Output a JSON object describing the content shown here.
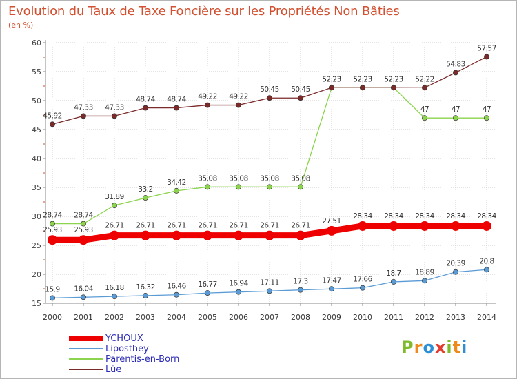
{
  "title": "Evolution du Taux de Taxe Foncière sur les Propriétés Non Bâties",
  "unit_label": "(en %)",
  "logo": {
    "text": "Proxiti",
    "letters": [
      {
        "char": "P",
        "color": "#7fba2a"
      },
      {
        "char": "r",
        "color": "#ef8a1a"
      },
      {
        "char": "o",
        "color": "#2c8fd6"
      },
      {
        "char": "x",
        "color": "#e33b2d"
      },
      {
        "char": "i",
        "color": "#7fba2a"
      },
      {
        "char": "t",
        "color": "#ef8a1a"
      },
      {
        "char": "i",
        "color": "#2c8fd6"
      }
    ]
  },
  "chart_data": {
    "type": "line",
    "title": "Evolution du Taux de Taxe Foncière sur les Propriétés Non Bâties",
    "ylabel": "(en %)",
    "xlabel": "",
    "x": [
      "2000",
      "2001",
      "2002",
      "2003",
      "2004",
      "2005",
      "2006",
      "2007",
      "2008",
      "2009",
      "2010",
      "2011",
      "2012",
      "2013",
      "2014"
    ],
    "ylim": [
      15,
      60
    ],
    "yticks": [
      "15",
      "20",
      "25",
      "30",
      "35",
      "40",
      "45",
      "50",
      "55",
      "60"
    ],
    "grid": true,
    "legend_position": "bottom-left",
    "series": [
      {
        "name": "YCHOUX",
        "color": "#ee0000",
        "values": [
          25.93,
          25.93,
          26.71,
          26.71,
          26.71,
          26.71,
          26.71,
          26.71,
          26.71,
          27.51,
          28.34,
          28.34,
          28.34,
          28.34,
          28.34
        ],
        "labels": [
          "25.93",
          "25.93",
          "26.71",
          "26.71",
          "26.71",
          "26.71",
          "26.71",
          "26.71",
          "26.71",
          "27.51",
          "28.34",
          "28.34",
          "28.34",
          "28.34",
          "28.34"
        ]
      },
      {
        "name": "Liposthey",
        "color": "#5b9bd5",
        "values": [
          15.9,
          16.04,
          16.18,
          16.32,
          16.46,
          16.77,
          16.94,
          17.11,
          17.3,
          17.47,
          17.66,
          18.7,
          18.89,
          20.39,
          20.8
        ],
        "labels": [
          "15.9",
          "16.04",
          "16.18",
          "16.32",
          "16.46",
          "16.77",
          "16.94",
          "17.11",
          "17.3",
          "17.47",
          "17.66",
          "18.7",
          "18.89",
          "20.39",
          "20.8"
        ]
      },
      {
        "name": "Parentis-en-Born",
        "color": "#8cd34e",
        "values": [
          28.74,
          28.74,
          31.89,
          33.2,
          34.42,
          35.08,
          35.08,
          35.08,
          35.08,
          52.23,
          52.23,
          52.23,
          47,
          47,
          47
        ],
        "labels": [
          "28.74",
          "28.74",
          "31.89",
          "33.2",
          "34.42",
          "35.08",
          "35.08",
          "35.08",
          "35.08",
          "52.23",
          "52.23",
          "52.23",
          "47",
          "47",
          "47"
        ]
      },
      {
        "name": "Lüe",
        "color": "#7b2a2a",
        "values": [
          45.92,
          47.33,
          47.33,
          48.74,
          48.74,
          49.22,
          49.22,
          50.45,
          50.45,
          52.23,
          52.23,
          52.23,
          52.22,
          54.83,
          57.57
        ],
        "labels": [
          "45.92",
          "47.33",
          "47.33",
          "48.74",
          "48.74",
          "49.22",
          "49.22",
          "50.45",
          "50.45",
          "52.23",
          "52.23",
          "52.23",
          "52.22",
          "54.83",
          "57.57"
        ]
      }
    ]
  }
}
